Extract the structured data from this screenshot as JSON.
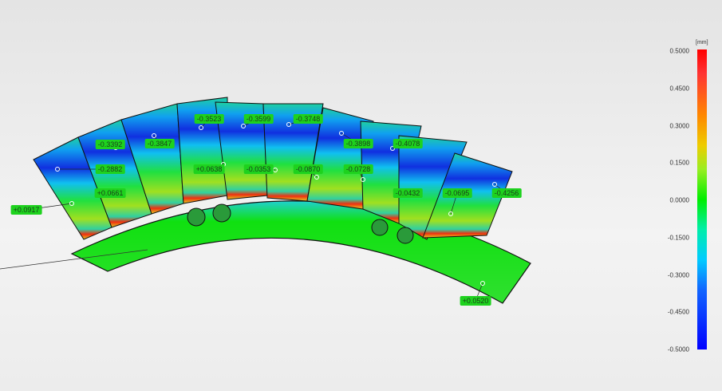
{
  "viewport": {
    "labels": [
      "+0.0917",
      "-0.3392",
      "-0.2882",
      "+0.0661",
      "-0.3847",
      "-0.3523",
      "+0.0638",
      "-0.3599",
      "-0.0353",
      "-0.3748",
      "-0.0870",
      "-0.3898",
      "-0.0728",
      "-0.4078",
      "-0.0432",
      "-0.0695",
      "-0.4256",
      "+0.0520"
    ],
    "label_color": "#1ed21e"
  },
  "legend": {
    "unit": "[mm]",
    "ticks": [
      "0.5000",
      "0.4500",
      "0.3000",
      "0.1500",
      "0.0000",
      "-0.1500",
      "-0.3000",
      "-0.4500",
      "-0.5000"
    ],
    "colors": {
      "max": "#ff0000",
      "mid": "#00e000",
      "min": "#0000ff"
    }
  }
}
